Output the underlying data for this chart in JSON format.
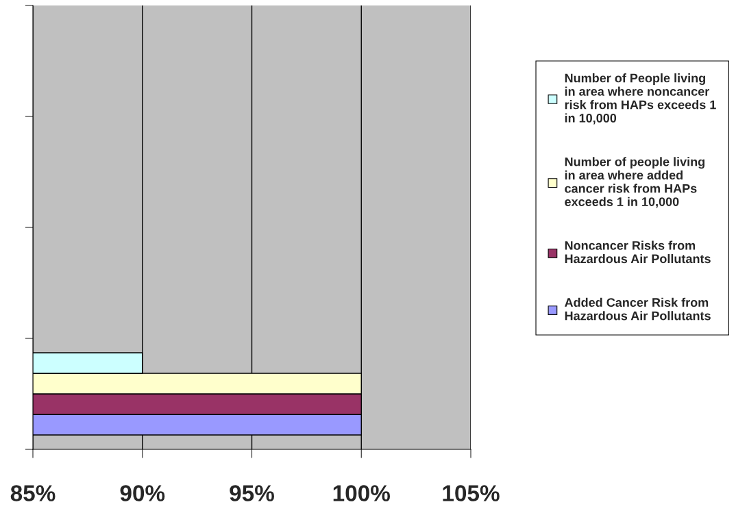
{
  "chart_data": {
    "type": "bar",
    "orientation": "horizontal",
    "categories": [
      null,
      null,
      null,
      null
    ],
    "series": [
      {
        "name": "Added Cancer Risk from Hazardous Air Pollutants",
        "color": "#9999ff",
        "values": [
          null,
          null,
          null,
          100
        ]
      },
      {
        "name": "Noncancer Risks from Hazardous Air Pollutants",
        "color": "#993366",
        "values": [
          null,
          null,
          null,
          100
        ]
      },
      {
        "name": "Number of people living in area where added cancer risk from HAPs exceeds 1 in 10,000",
        "color": "#ffffcc",
        "values": [
          null,
          null,
          null,
          100
        ]
      },
      {
        "name": "Number of People living in area where noncancer risk from HAPs exceeds 1 in 10,000",
        "color": "#ccffff",
        "values": [
          null,
          null,
          null,
          90
        ]
      }
    ],
    "xlim": [
      85,
      105
    ],
    "xticks": [
      {
        "value": 85,
        "label": "85%"
      },
      {
        "value": 90,
        "label": "90%"
      },
      {
        "value": 95,
        "label": "95%"
      },
      {
        "value": 100,
        "label": "100%"
      },
      {
        "value": 105,
        "label": "105%"
      }
    ],
    "grid": "x",
    "legend": "right",
    "tick_labels": "x"
  }
}
